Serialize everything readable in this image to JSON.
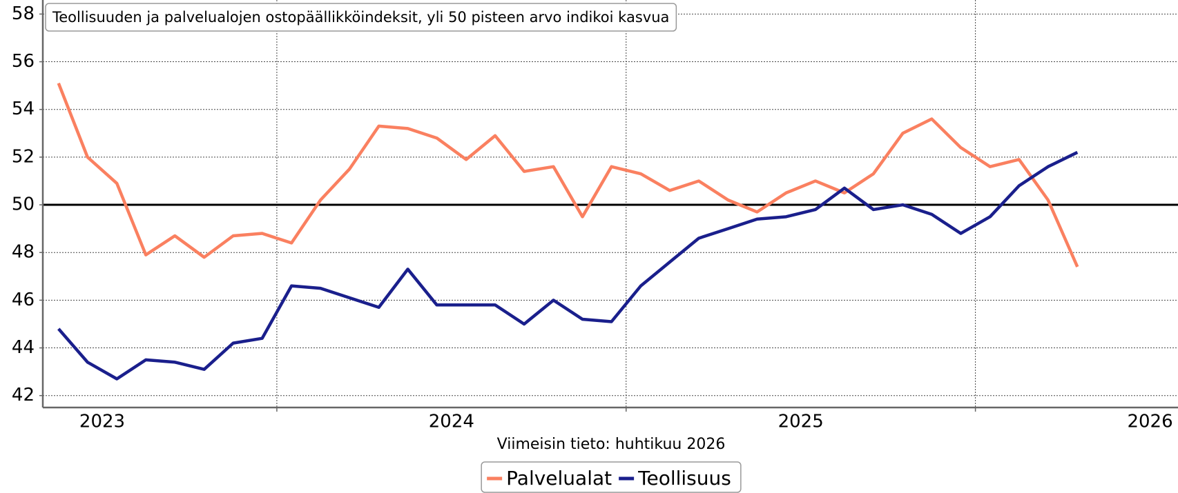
{
  "chart_data": {
    "type": "line",
    "title": "Teollisuuden ja palvelualojen ostopäällikköindeksit, yli 50 pisteen arvo indikoi kasvua",
    "xlabel": "Viimeisin tieto: huhtikuu 2026",
    "x": [
      2023.375,
      2023.458,
      2023.542,
      2023.625,
      2023.708,
      2023.792,
      2023.875,
      2023.958,
      2024.042,
      2024.125,
      2024.208,
      2024.292,
      2024.375,
      2024.458,
      2024.542,
      2024.625,
      2024.708,
      2024.792,
      2024.875,
      2024.958,
      2025.042,
      2025.125,
      2025.208,
      2025.292,
      2025.375,
      2025.458,
      2025.542,
      2025.625,
      2025.708,
      2025.792,
      2025.875,
      2025.958,
      2026.042,
      2026.125,
      2026.208,
      2026.292
    ],
    "series": [
      {
        "name": "Palvelualat",
        "color": "#fa8060",
        "values": [
          55.1,
          52.0,
          50.9,
          47.9,
          48.7,
          47.8,
          48.7,
          48.8,
          48.4,
          50.2,
          51.5,
          53.3,
          53.2,
          52.8,
          51.9,
          52.9,
          51.4,
          51.6,
          49.5,
          51.6,
          51.3,
          50.6,
          51.0,
          50.2,
          49.7,
          50.5,
          51.0,
          50.5,
          51.3,
          53.0,
          53.6,
          52.4,
          51.6,
          51.9,
          50.2,
          47.4
        ]
      },
      {
        "name": "Teollisuus",
        "color": "#1a1f8c",
        "values": [
          44.8,
          43.4,
          42.7,
          43.5,
          43.4,
          43.1,
          44.2,
          44.4,
          46.6,
          46.5,
          46.1,
          45.7,
          47.3,
          45.8,
          45.8,
          45.8,
          45.0,
          46.0,
          45.2,
          45.1,
          46.6,
          47.6,
          48.6,
          49.0,
          49.4,
          49.5,
          49.8,
          50.7,
          49.8,
          50.0,
          49.6,
          48.8,
          49.5,
          50.8,
          51.6,
          52.2
        ]
      }
    ],
    "xlim": [
      2023.33,
      2026.58
    ],
    "xticks": [
      {
        "value": 2023.5,
        "label": "2023"
      },
      {
        "value": 2024.5,
        "label": "2024"
      },
      {
        "value": 2025.5,
        "label": "2025"
      },
      {
        "value": 2026.5,
        "label": "2026"
      }
    ],
    "xgrid_ticks": [
      2024,
      2025,
      2026
    ],
    "ylim": [
      41.5,
      58.3
    ],
    "yticks": [
      42,
      44,
      46,
      48,
      50,
      52,
      54,
      56,
      58
    ],
    "reference_line": 50,
    "grid": true,
    "legend": "bottom"
  }
}
